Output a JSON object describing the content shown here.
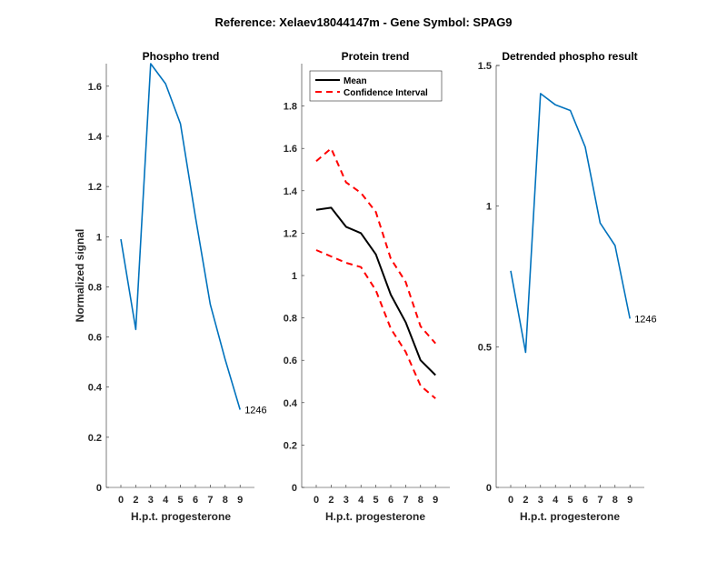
{
  "figure": {
    "suptitle": "Reference:  Xelaev18044147m - Gene Symbol:  SPAG9"
  },
  "chart_data": [
    {
      "type": "line",
      "title": "Phospho trend",
      "xlabel": "H.p.t. progesterone",
      "ylabel": "Normalized signal",
      "x_tick_labels": [
        "0",
        "2",
        "3",
        "4",
        "5",
        "6",
        "7",
        "8",
        "9"
      ],
      "y_ticks": [
        0,
        0.2,
        0.4,
        0.6,
        0.8,
        1,
        1.2,
        1.4,
        1.6
      ],
      "y_tick_labels": [
        "0",
        "0.2",
        "0.4",
        "0.6",
        "0.8",
        "1",
        "1.2",
        "1.4",
        "1.6"
      ],
      "ylim": [
        0,
        1.69
      ],
      "grid": false,
      "series": [
        {
          "name": "1246",
          "color": "#0072BD",
          "style": "solid",
          "values": [
            0.99,
            0.63,
            1.69,
            1.61,
            1.45,
            1.08,
            0.73,
            0.51,
            0.31
          ]
        }
      ],
      "annotation": "1246"
    },
    {
      "type": "line",
      "title": "Protein trend",
      "xlabel": "H.p.t. progesterone",
      "ylabel": "",
      "x_tick_labels": [
        "0",
        "2",
        "3",
        "4",
        "5",
        "6",
        "7",
        "8",
        "9"
      ],
      "y_ticks": [
        0,
        0.2,
        0.4,
        0.6,
        0.8,
        1,
        1.2,
        1.4,
        1.6,
        1.8
      ],
      "y_tick_labels": [
        "0",
        "0.2",
        "0.4",
        "0.6",
        "0.8",
        "1",
        "1.2",
        "1.4",
        "1.6",
        "1.8"
      ],
      "ylim": [
        0,
        2.0
      ],
      "grid": false,
      "legend_position": "top",
      "series": [
        {
          "name": "Mean",
          "color": "#000000",
          "style": "solid",
          "values": [
            1.31,
            1.32,
            1.23,
            1.2,
            1.1,
            0.91,
            0.78,
            0.6,
            0.53
          ]
        },
        {
          "name": "Confidence Interval",
          "color": "#FF0000",
          "style": "dashed",
          "values": [
            1.54,
            1.6,
            1.44,
            1.39,
            1.3,
            1.08,
            0.97,
            0.76,
            0.68
          ]
        },
        {
          "name": "Confidence Interval (lower)",
          "color": "#FF0000",
          "style": "dashed",
          "in_legend": false,
          "values": [
            1.12,
            1.09,
            1.06,
            1.04,
            0.93,
            0.75,
            0.64,
            0.48,
            0.42
          ]
        }
      ],
      "legend": [
        "Mean",
        "Confidence Interval"
      ]
    },
    {
      "type": "line",
      "title": "Detrended phospho result",
      "xlabel": "H.p.t. progesterone",
      "ylabel": "",
      "x_tick_labels": [
        "0",
        "2",
        "3",
        "4",
        "5",
        "6",
        "7",
        "8",
        "9"
      ],
      "y_ticks": [
        0,
        0.5,
        1,
        1.5
      ],
      "y_tick_labels": [
        "0",
        "0.5",
        "1",
        "1.5"
      ],
      "ylim": [
        0,
        1.5
      ],
      "grid": false,
      "series": [
        {
          "name": "1246",
          "color": "#0072BD",
          "style": "solid",
          "values": [
            0.77,
            0.48,
            1.4,
            1.36,
            1.34,
            1.21,
            0.94,
            0.86,
            0.6
          ]
        }
      ],
      "annotation": "1246"
    }
  ]
}
